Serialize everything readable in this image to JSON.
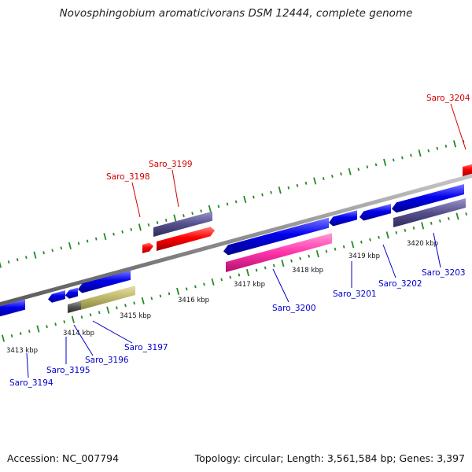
{
  "title": "Novosphingobium aromaticivorans DSM 12444, complete genome",
  "accession_label": "Accession: NC_007794",
  "summary_label": "Topology: circular; Length: 3,561,584 bp; Genes: 3,397",
  "colors": {
    "backbone": "#8c8c8c",
    "tick": "#228b22",
    "forward_label": "#d40000",
    "reverse_label": "#0000cc"
  },
  "tick_labels": [
    "3413 kbp",
    "3414 kbp",
    "3415 kbp",
    "3416 kbp",
    "3417 kbp",
    "3418 kbp",
    "3419 kbp",
    "3420 kbp"
  ],
  "genes": [
    {
      "id": "Saro_3194",
      "strand": "reverse",
      "color": "#0000ee"
    },
    {
      "id": "Saro_3195",
      "strand": "reverse",
      "color": "#0000ee"
    },
    {
      "id": "Saro_3196",
      "strand": "reverse",
      "color": "#0000ee"
    },
    {
      "id": "Saro_3197",
      "strand": "reverse",
      "color": "#0000ee"
    },
    {
      "id": "Saro_3198",
      "strand": "forward",
      "color": "#ff0000"
    },
    {
      "id": "Saro_3199",
      "strand": "forward",
      "color": "#ff0000"
    },
    {
      "id": "Saro_3200",
      "strand": "reverse",
      "color": "#0000ee"
    },
    {
      "id": "Saro_3201",
      "strand": "reverse",
      "color": "#0000ee"
    },
    {
      "id": "Saro_3202",
      "strand": "reverse",
      "color": "#0000ee"
    },
    {
      "id": "Saro_3203",
      "strand": "reverse",
      "color": "#0000ee"
    },
    {
      "id": "Saro_3204",
      "strand": "forward",
      "color": "#ff0000"
    }
  ],
  "feature_colors": {
    "cog_bar_purple": "#55508c",
    "cog_bar_pink": "#ff33aa",
    "cog_bar_olive": "#bdb76b",
    "cog_bar_grey": "#555555"
  }
}
